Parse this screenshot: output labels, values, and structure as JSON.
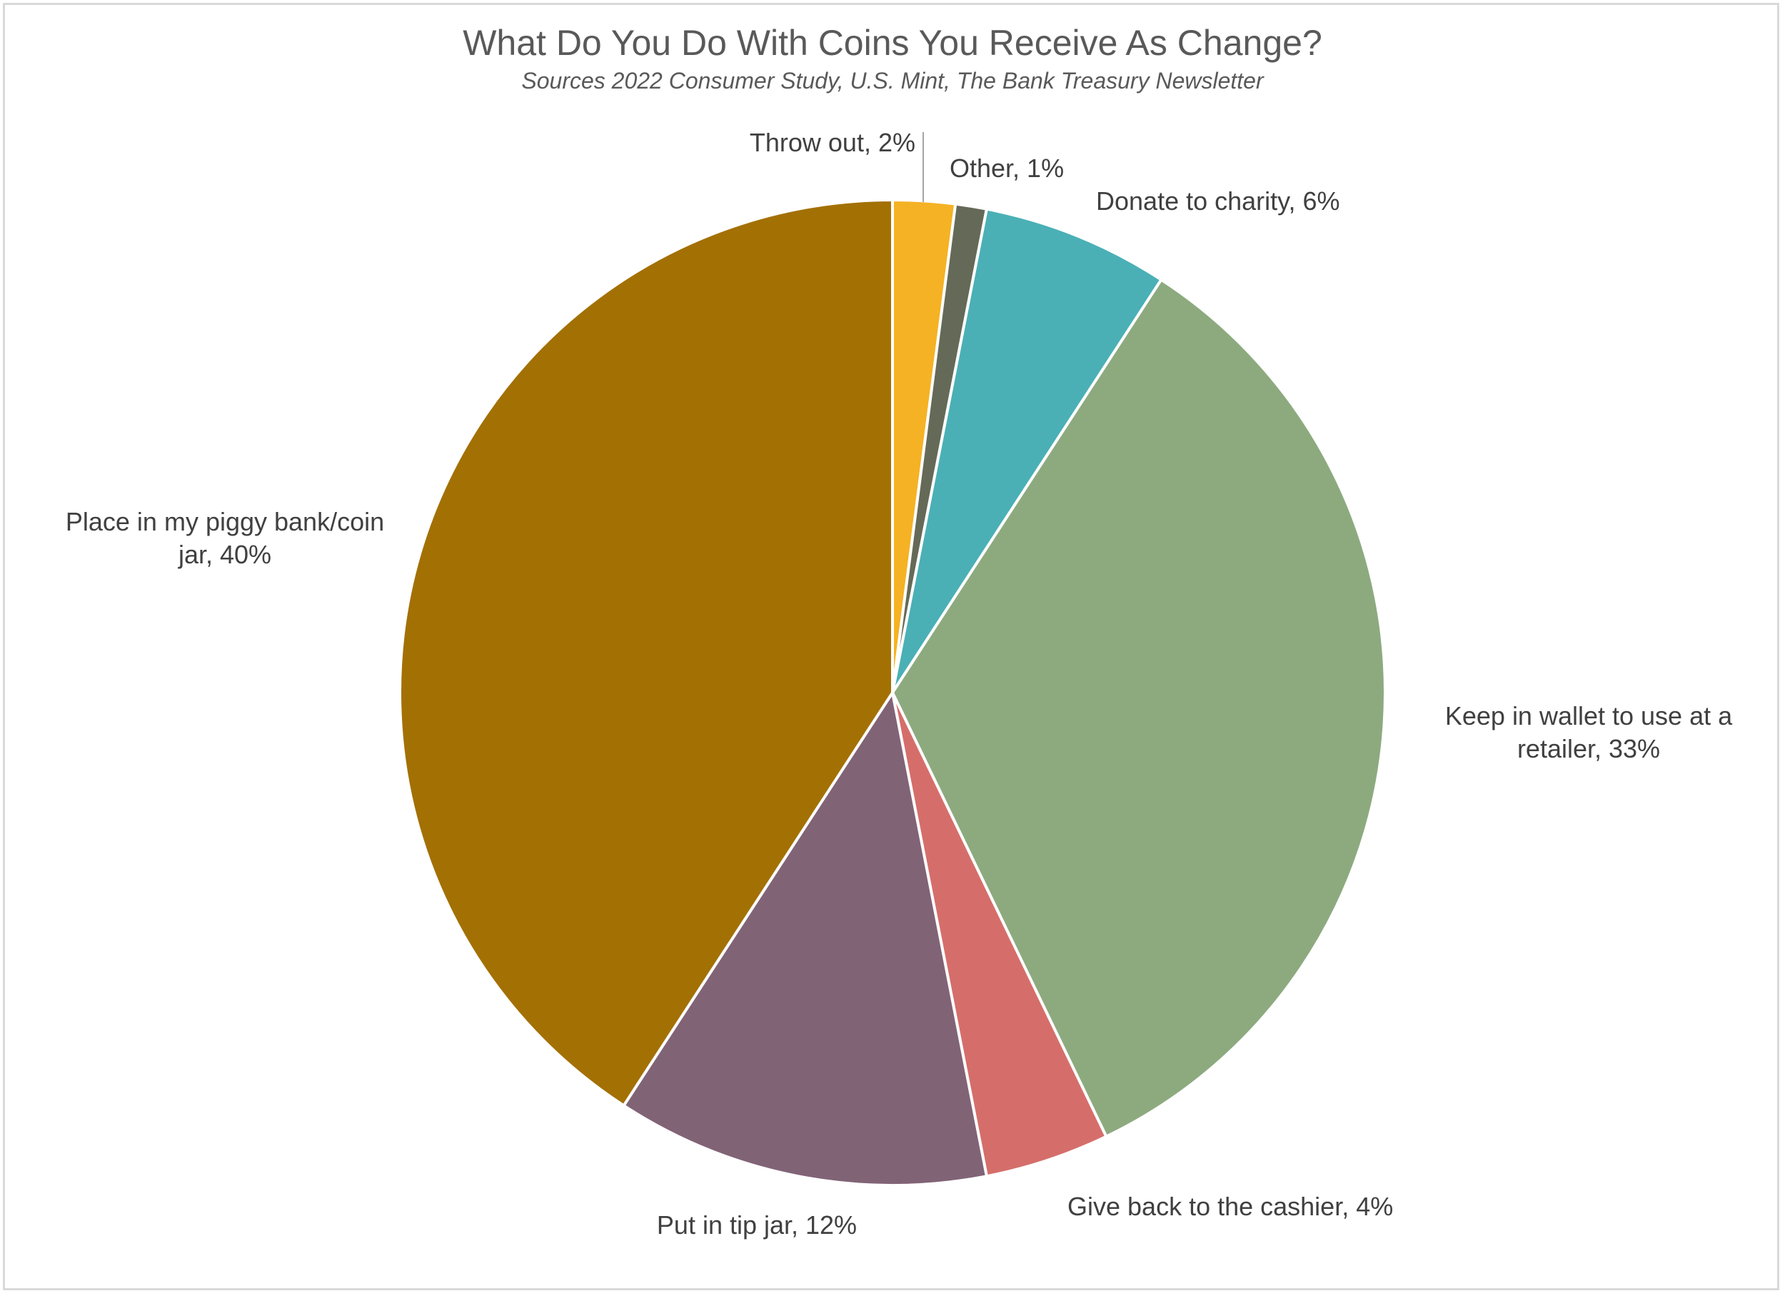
{
  "chart_data": {
    "type": "pie",
    "title": "What Do You Do With Coins You Receive As Change?",
    "subtitle": "Sources 2022 Consumer Study, U.S. Mint, The Bank Treasury Newsletter",
    "start_angle_deg": 0,
    "direction": "clockwise",
    "slices": [
      {
        "label_lines": [
          "Throw out, 2%"
        ],
        "value": 2,
        "color": "#F5B224"
      },
      {
        "label_lines": [
          "Other, 1%"
        ],
        "value": 1,
        "color": "#646A57"
      },
      {
        "label_lines": [
          "Donate to charity, 6%"
        ],
        "value": 6,
        "color": "#4AB0B5"
      },
      {
        "label_lines": [
          "Keep in wallet to use at a",
          "retailer, 33%"
        ],
        "value": 33,
        "color": "#8DAA7F"
      },
      {
        "label_lines": [
          "Give back to the cashier, 4%"
        ],
        "value": 4,
        "color": "#D56E6A"
      },
      {
        "label_lines": [
          "Put in tip jar, 12%"
        ],
        "value": 12,
        "color": "#816376"
      },
      {
        "label_lines": [
          "Place in my piggy bank/coin",
          "jar, 40%"
        ],
        "value": 40,
        "color": "#A37004"
      }
    ]
  }
}
